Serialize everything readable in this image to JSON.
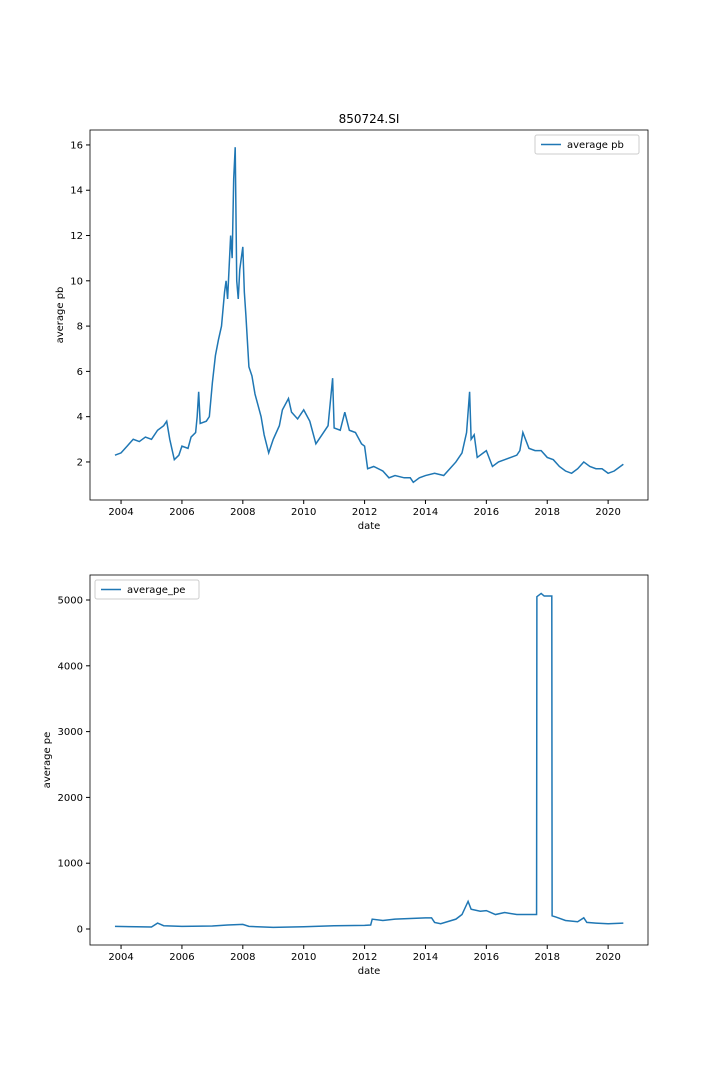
{
  "chart_data": [
    {
      "type": "line",
      "title": "850724.SI",
      "xlabel": "date",
      "ylabel": "average pb",
      "legend": "upper right",
      "x": [
        2003.8,
        2004.0,
        2004.2,
        2004.4,
        2004.6,
        2004.8,
        2005.0,
        2005.2,
        2005.4,
        2005.5,
        2005.6,
        2005.75,
        2005.9,
        2006.0,
        2006.2,
        2006.3,
        2006.45,
        2006.5,
        2006.55,
        2006.6,
        2006.8,
        2006.9,
        2007.0,
        2007.1,
        2007.2,
        2007.3,
        2007.4,
        2007.45,
        2007.5,
        2007.6,
        2007.65,
        2007.7,
        2007.75,
        2007.8,
        2007.85,
        2007.9,
        2008.0,
        2008.05,
        2008.1,
        2008.2,
        2008.3,
        2008.4,
        2008.5,
        2008.6,
        2008.7,
        2008.85,
        2009.0,
        2009.2,
        2009.3,
        2009.5,
        2009.6,
        2009.8,
        2010.0,
        2010.2,
        2010.4,
        2010.6,
        2010.8,
        2010.95,
        2011.0,
        2011.2,
        2011.35,
        2011.5,
        2011.7,
        2011.9,
        2012.0,
        2012.1,
        2012.3,
        2012.6,
        2012.8,
        2013.0,
        2013.3,
        2013.5,
        2013.6,
        2013.8,
        2014.0,
        2014.3,
        2014.6,
        2014.8,
        2015.0,
        2015.2,
        2015.35,
        2015.45,
        2015.5,
        2015.6,
        2015.7,
        2015.9,
        2016.0,
        2016.2,
        2016.4,
        2016.6,
        2016.8,
        2017.0,
        2017.1,
        2017.2,
        2017.4,
        2017.6,
        2017.8,
        2018.0,
        2018.2,
        2018.4,
        2018.6,
        2018.8,
        2019.0,
        2019.2,
        2019.4,
        2019.6,
        2019.8,
        2020.0,
        2020.2,
        2020.5
      ],
      "series": [
        {
          "name": "average pb",
          "color": "#1f77b4",
          "values": [
            2.3,
            2.4,
            2.7,
            3.0,
            2.9,
            3.1,
            3.0,
            3.4,
            3.6,
            3.8,
            3.0,
            2.1,
            2.3,
            2.7,
            2.6,
            3.1,
            3.3,
            4.0,
            5.1,
            3.7,
            3.8,
            4.0,
            5.5,
            6.7,
            7.4,
            8.0,
            9.5,
            10.0,
            9.2,
            12.0,
            11.0,
            14.5,
            15.9,
            10.0,
            9.2,
            10.5,
            11.5,
            9.5,
            8.5,
            6.2,
            5.8,
            5.0,
            4.5,
            4.0,
            3.2,
            2.4,
            3.0,
            3.6,
            4.3,
            4.8,
            4.2,
            3.9,
            4.3,
            3.8,
            2.8,
            3.2,
            3.6,
            5.7,
            3.5,
            3.4,
            4.2,
            3.4,
            3.3,
            2.8,
            2.7,
            1.7,
            1.8,
            1.6,
            1.3,
            1.4,
            1.3,
            1.3,
            1.1,
            1.3,
            1.4,
            1.5,
            1.4,
            1.7,
            2.0,
            2.4,
            3.3,
            5.1,
            3.0,
            3.2,
            2.2,
            2.4,
            2.5,
            1.8,
            2.0,
            2.1,
            2.2,
            2.3,
            2.5,
            3.3,
            2.6,
            2.5,
            2.5,
            2.2,
            2.1,
            1.8,
            1.6,
            1.5,
            1.7,
            2.0,
            1.8,
            1.7,
            1.7,
            1.5,
            1.6,
            1.9
          ]
        }
      ],
      "xlim": [
        2002.98,
        2021.31
      ],
      "xticks": [
        2004,
        2006,
        2008,
        2010,
        2012,
        2014,
        2016,
        2018,
        2020
      ],
      "ylim": [
        0.32,
        16.66
      ],
      "yticks": [
        2,
        4,
        6,
        8,
        10,
        12,
        14,
        16
      ]
    },
    {
      "type": "line",
      "xlabel": "date",
      "ylabel": "average pe",
      "legend": "upper left",
      "x": [
        2003.8,
        2004.5,
        2005.0,
        2005.2,
        2005.4,
        2006.0,
        2007.0,
        2007.5,
        2008.0,
        2008.2,
        2009.0,
        2010.0,
        2011.0,
        2012.0,
        2012.2,
        2012.25,
        2012.6,
        2013.0,
        2014.0,
        2014.2,
        2014.3,
        2014.5,
        2015.0,
        2015.2,
        2015.4,
        2015.5,
        2015.8,
        2016.0,
        2016.3,
        2016.6,
        2017.0,
        2017.5,
        2017.65,
        2017.66,
        2017.8,
        2017.9,
        2018.15,
        2018.16,
        2018.3,
        2018.6,
        2019.0,
        2019.2,
        2019.3,
        2019.6,
        2020.0,
        2020.5
      ],
      "series": [
        {
          "name": "average_pe",
          "color": "#1f77b4",
          "values": [
            40,
            35,
            30,
            90,
            50,
            40,
            45,
            60,
            70,
            40,
            25,
            35,
            50,
            55,
            60,
            150,
            130,
            150,
            170,
            170,
            100,
            80,
            150,
            220,
            420,
            300,
            270,
            280,
            220,
            250,
            220,
            220,
            220,
            5050,
            5100,
            5060,
            5060,
            200,
            180,
            130,
            110,
            170,
            100,
            90,
            80,
            90
          ]
        }
      ],
      "xlim": [
        2002.98,
        2021.31
      ],
      "xticks": [
        2004,
        2006,
        2008,
        2010,
        2012,
        2014,
        2016,
        2018,
        2020
      ],
      "ylim": [
        -243,
        5380
      ],
      "yticks": [
        0,
        1000,
        2000,
        3000,
        4000,
        5000
      ]
    }
  ]
}
